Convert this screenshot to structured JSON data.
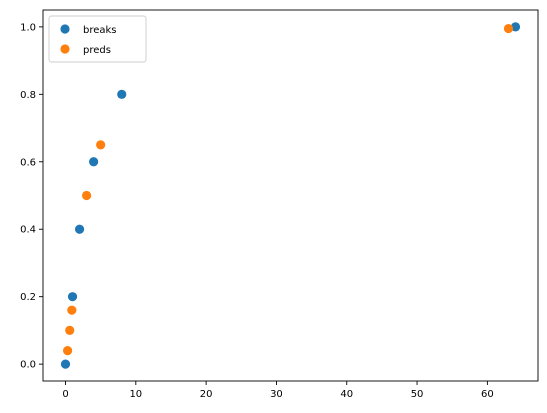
{
  "chart_data": {
    "type": "scatter",
    "title": "",
    "xlabel": "",
    "ylabel": "",
    "xlim": [
      -3.2,
      67.2
    ],
    "ylim": [
      -0.05,
      1.05
    ],
    "xticks": [
      0,
      10,
      20,
      30,
      40,
      50,
      60
    ],
    "xtick_labels": [
      "0",
      "10",
      "20",
      "30",
      "40",
      "50",
      "60"
    ],
    "yticks": [
      0.0,
      0.2,
      0.4,
      0.6,
      0.8,
      1.0
    ],
    "ytick_labels": [
      "0.0",
      "0.2",
      "0.4",
      "0.6",
      "0.8",
      "1.0"
    ],
    "grid": false,
    "legend_position": "top-left",
    "series": [
      {
        "name": "breaks",
        "color": "#1f77b4",
        "points": [
          [
            0,
            0.0
          ],
          [
            1,
            0.2
          ],
          [
            2,
            0.4
          ],
          [
            4,
            0.6
          ],
          [
            8,
            0.8
          ],
          [
            64,
            1.0
          ]
        ]
      },
      {
        "name": "preds",
        "color": "#ff7f0e",
        "points": [
          [
            0.3,
            0.04
          ],
          [
            0.6,
            0.1
          ],
          [
            0.9,
            0.16
          ],
          [
            3.0,
            0.5
          ],
          [
            5.0,
            0.65
          ],
          [
            63.0,
            0.995
          ]
        ]
      }
    ]
  }
}
